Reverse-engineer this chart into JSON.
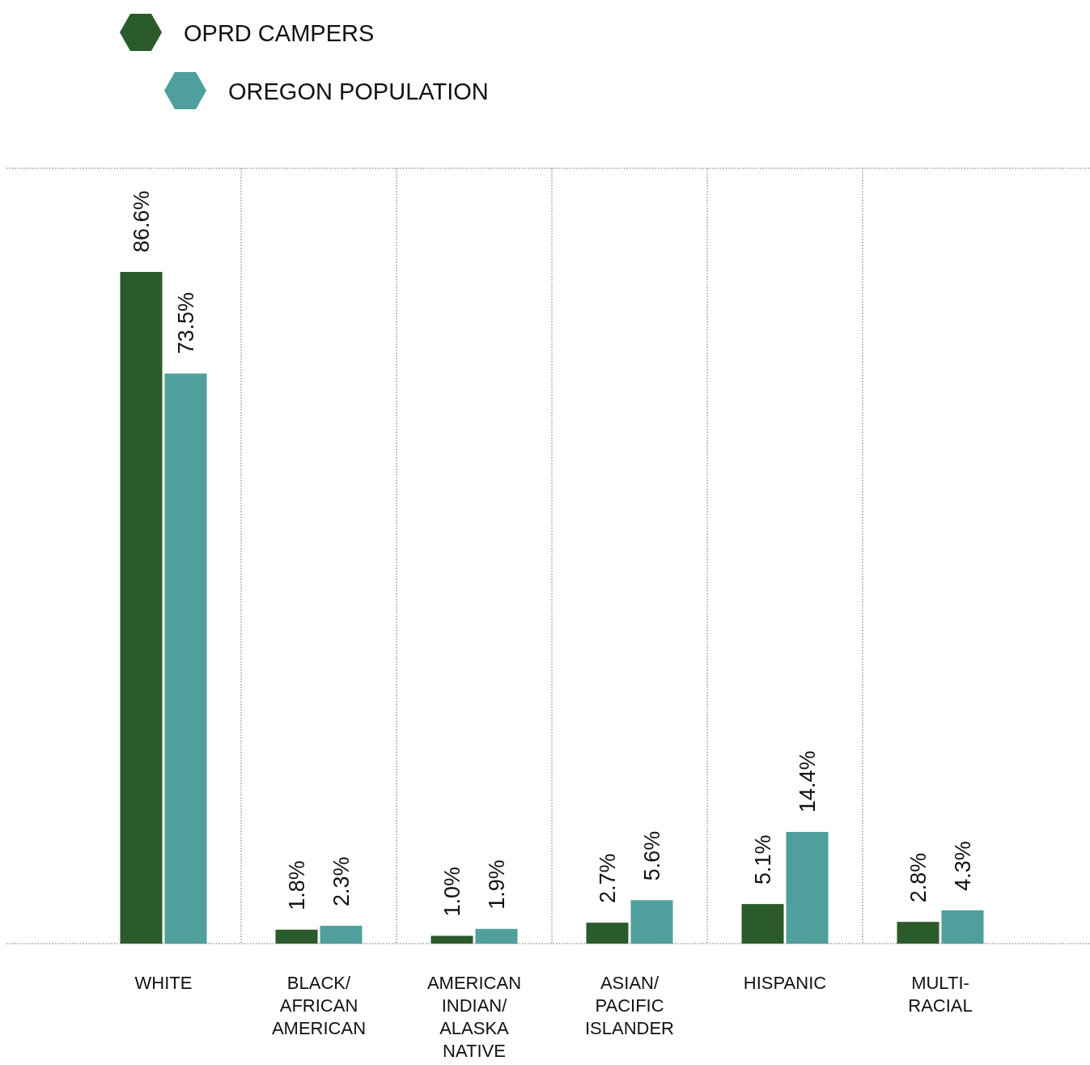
{
  "chart_data": {
    "type": "bar",
    "categories": [
      "WHITE",
      "BLACK/ AFRICAN AMERICAN",
      "AMERICAN INDIAN/ ALASKA NATIVE",
      "ASIAN/ PACIFIC ISLANDER",
      "HISPANIC",
      "MULTI-RACIAL"
    ],
    "series": [
      {
        "name": "OPRD CAMPERS",
        "color": "#2b5a2b",
        "values": [
          86.6,
          1.8,
          1.0,
          2.7,
          5.1,
          2.8
        ],
        "value_labels": [
          "86.6%",
          "1.8%",
          "1.0%",
          "2.7%",
          "5.1%",
          "2.8%"
        ]
      },
      {
        "name": "OREGON POPULATION",
        "color": "#4fa09c",
        "values": [
          73.5,
          2.3,
          1.9,
          5.6,
          14.4,
          4.3
        ],
        "value_labels": [
          "73.5%",
          "2.3%",
          "1.9%",
          "5.6%",
          "14.4%",
          "4.3%"
        ]
      }
    ],
    "legend": "top left",
    "grid": "x"
  }
}
